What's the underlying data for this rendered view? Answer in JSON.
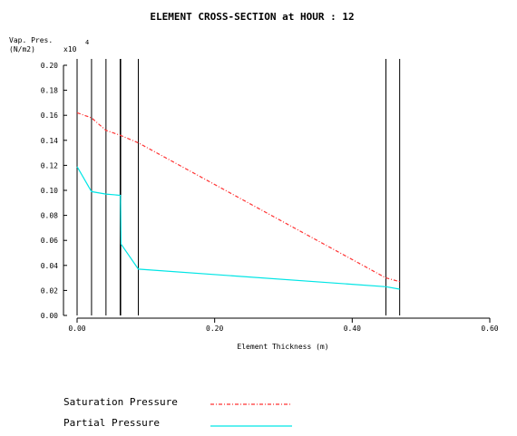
{
  "chart_data": {
    "type": "line",
    "title": "ELEMENT CROSS-SECTION at HOUR : 12",
    "ylabel_line1": "Vap. Pres.",
    "ylabel_line2": "(N/m2)",
    "y_multiplier": "x10",
    "y_multiplier_exp": "4",
    "xlabel": "Element Thickness (m)",
    "xlim": [
      0,
      0.6
    ],
    "ylim": [
      0,
      0.2
    ],
    "x_ticks": [
      {
        "value": 0.0,
        "label": "0.00"
      },
      {
        "value": 0.2,
        "label": "0.20"
      },
      {
        "value": 0.4,
        "label": "0.40"
      },
      {
        "value": 0.6,
        "label": "0.60"
      }
    ],
    "y_ticks": [
      {
        "value": 0.2,
        "label": "0.20"
      },
      {
        "value": 0.18,
        "label": "0.18"
      },
      {
        "value": 0.16,
        "label": "0.16"
      },
      {
        "value": 0.14,
        "label": "0.14"
      },
      {
        "value": 0.12,
        "label": "0.12"
      },
      {
        "value": 0.1,
        "label": "0.10"
      },
      {
        "value": 0.08,
        "label": "0.08"
      },
      {
        "value": 0.06,
        "label": "0.06"
      },
      {
        "value": 0.04,
        "label": "0.04"
      },
      {
        "value": 0.02,
        "label": "0.02"
      },
      {
        "value": 0.0,
        "label": "0.00"
      }
    ],
    "layer_boundaries": [
      0.0,
      0.021,
      0.042,
      0.063,
      0.089,
      0.449,
      0.469
    ],
    "series": [
      {
        "name": "Saturation Pressure",
        "color": "#ff3333",
        "style": "dash-dot",
        "points": [
          [
            0.0,
            0.162
          ],
          [
            0.021,
            0.158
          ],
          [
            0.042,
            0.148
          ],
          [
            0.063,
            0.144
          ],
          [
            0.089,
            0.138
          ],
          [
            0.449,
            0.03
          ],
          [
            0.469,
            0.027
          ]
        ]
      },
      {
        "name": "Partial Pressure",
        "color": "#00e5e5",
        "style": "solid",
        "points": [
          [
            0.0,
            0.119
          ],
          [
            0.021,
            0.099
          ],
          [
            0.042,
            0.097
          ],
          [
            0.063,
            0.096
          ],
          [
            0.064,
            0.057
          ],
          [
            0.089,
            0.037
          ],
          [
            0.449,
            0.023
          ],
          [
            0.469,
            0.021
          ]
        ]
      }
    ]
  }
}
